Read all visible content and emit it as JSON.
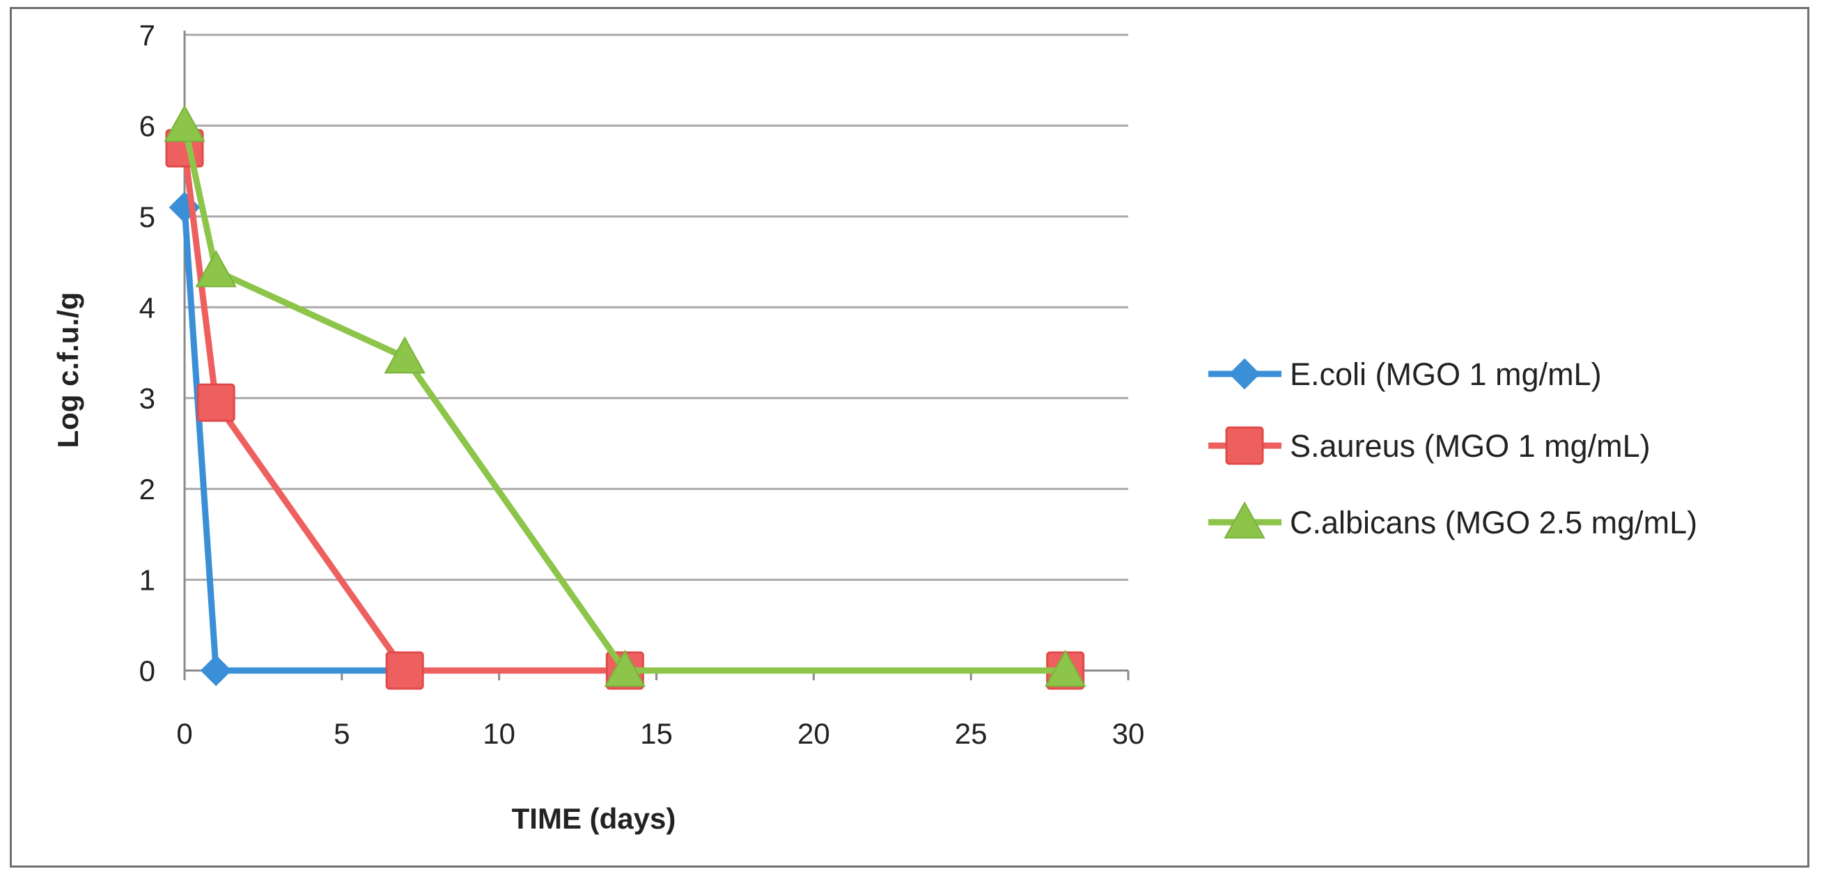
{
  "chart_data": {
    "type": "line",
    "title": "",
    "xlabel": "TIME (days)",
    "ylabel": "Log c.f.u./g",
    "xlim": [
      0,
      30
    ],
    "ylim": [
      0,
      7
    ],
    "xticks": [
      0,
      5,
      10,
      15,
      20,
      25,
      30
    ],
    "yticks": [
      0,
      1,
      2,
      3,
      4,
      5,
      6,
      7
    ],
    "grid": "horizontal",
    "legend": "right",
    "series": [
      {
        "name": "E.coli (MGO 1 mg/mL)",
        "color": "#3b8fd6",
        "marker": "diamond",
        "x": [
          0,
          1,
          7,
          14,
          28
        ],
        "y": [
          5.1,
          0,
          0,
          0,
          0
        ]
      },
      {
        "name": "S.aureus (MGO 1 mg/mL)",
        "color": "#ee5f5f",
        "marker": "square",
        "x": [
          0,
          1,
          7,
          14,
          28
        ],
        "y": [
          5.75,
          2.95,
          0,
          0,
          0
        ]
      },
      {
        "name": "C.albicans (MGO 2.5 mg/mL)",
        "color": "#8cc54a",
        "marker": "triangle",
        "x": [
          0,
          1,
          7,
          14,
          28
        ],
        "y": [
          6.0,
          4.4,
          3.45,
          0,
          0
        ]
      }
    ]
  }
}
